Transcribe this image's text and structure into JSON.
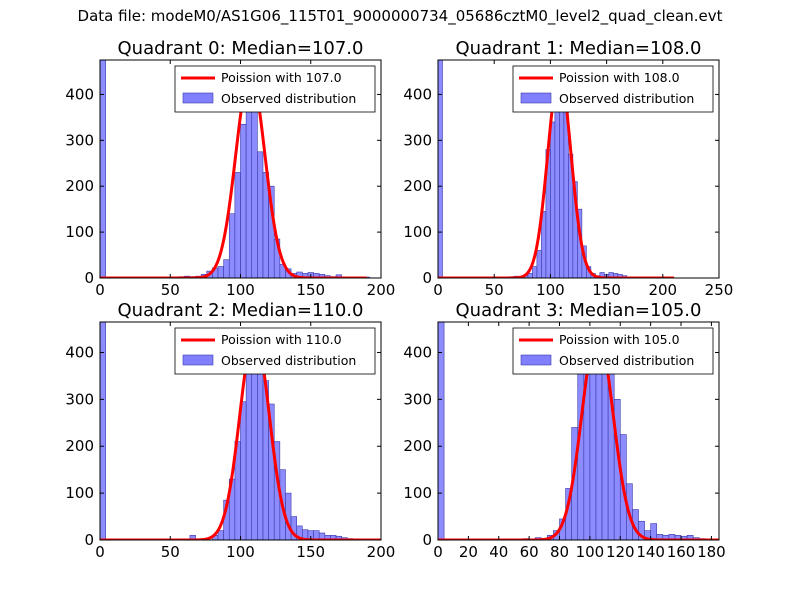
{
  "figure_title": "Data file: modeM0/AS1G06_115T01_9000000734_05686cztM0_level2_quad_clean.evt",
  "colors": {
    "fit": "#ff0000",
    "hist_fill": "#8080ff",
    "hist_edge": "#3a3aa8",
    "axis": "#000000"
  },
  "chart_data": [
    {
      "type": "bar",
      "title": "Quadrant 0: Median=107.0",
      "median": 107.0,
      "xlim": [
        0,
        200
      ],
      "ylim": [
        0,
        475
      ],
      "xticks": [
        0,
        50,
        100,
        150,
        200
      ],
      "yticks": [
        0,
        100,
        200,
        300,
        400
      ],
      "legend": {
        "placement": "top-right",
        "fit_label": "Poission with 107.0",
        "hist_label": "Observed distribution"
      },
      "histogram": {
        "bin_width": 4,
        "bins": [
          {
            "x0": 0,
            "count": 475
          },
          {
            "x0": 56,
            "count": 3
          },
          {
            "x0": 60,
            "count": 4
          },
          {
            "x0": 64,
            "count": 3
          },
          {
            "x0": 68,
            "count": 4
          },
          {
            "x0": 72,
            "count": 8
          },
          {
            "x0": 76,
            "count": 15
          },
          {
            "x0": 80,
            "count": 22
          },
          {
            "x0": 84,
            "count": 25
          },
          {
            "x0": 88,
            "count": 40
          },
          {
            "x0": 92,
            "count": 140
          },
          {
            "x0": 96,
            "count": 230
          },
          {
            "x0": 100,
            "count": 335
          },
          {
            "x0": 104,
            "count": 430
          },
          {
            "x0": 108,
            "count": 400
          },
          {
            "x0": 112,
            "count": 275
          },
          {
            "x0": 116,
            "count": 230
          },
          {
            "x0": 120,
            "count": 200
          },
          {
            "x0": 124,
            "count": 85
          },
          {
            "x0": 128,
            "count": 30
          },
          {
            "x0": 132,
            "count": 20
          },
          {
            "x0": 136,
            "count": 10
          },
          {
            "x0": 140,
            "count": 13
          },
          {
            "x0": 144,
            "count": 10
          },
          {
            "x0": 148,
            "count": 12
          },
          {
            "x0": 152,
            "count": 10
          },
          {
            "x0": 156,
            "count": 8
          },
          {
            "x0": 160,
            "count": 5
          },
          {
            "x0": 164,
            "count": 3
          },
          {
            "x0": 168,
            "count": 7
          },
          {
            "x0": 172,
            "count": 2
          },
          {
            "x0": 188,
            "count": 2
          }
        ]
      },
      "fit": {
        "mean": 107,
        "peak": 445,
        "x_range": [
          0,
          190
        ]
      }
    },
    {
      "type": "bar",
      "title": "Quadrant 1: Median=108.0",
      "median": 108.0,
      "xlim": [
        0,
        250
      ],
      "ylim": [
        0,
        475
      ],
      "xticks": [
        0,
        50,
        100,
        150,
        200,
        250
      ],
      "yticks": [
        0,
        100,
        200,
        300,
        400
      ],
      "legend": {
        "placement": "top-right",
        "fit_label": "Poission with 108.0",
        "hist_label": "Observed distribution"
      },
      "histogram": {
        "bin_width": 4,
        "bins": [
          {
            "x0": 0,
            "count": 475
          },
          {
            "x0": 64,
            "count": 3
          },
          {
            "x0": 68,
            "count": 4
          },
          {
            "x0": 72,
            "count": 3
          },
          {
            "x0": 76,
            "count": 6
          },
          {
            "x0": 80,
            "count": 10
          },
          {
            "x0": 84,
            "count": 25
          },
          {
            "x0": 88,
            "count": 60
          },
          {
            "x0": 92,
            "count": 145
          },
          {
            "x0": 96,
            "count": 280
          },
          {
            "x0": 100,
            "count": 340
          },
          {
            "x0": 104,
            "count": 410
          },
          {
            "x0": 108,
            "count": 430
          },
          {
            "x0": 112,
            "count": 370
          },
          {
            "x0": 116,
            "count": 270
          },
          {
            "x0": 120,
            "count": 210
          },
          {
            "x0": 124,
            "count": 150
          },
          {
            "x0": 128,
            "count": 70
          },
          {
            "x0": 132,
            "count": 25
          },
          {
            "x0": 136,
            "count": 10
          },
          {
            "x0": 140,
            "count": 5
          },
          {
            "x0": 144,
            "count": 12
          },
          {
            "x0": 148,
            "count": 8
          },
          {
            "x0": 152,
            "count": 12
          },
          {
            "x0": 156,
            "count": 10
          },
          {
            "x0": 160,
            "count": 8
          },
          {
            "x0": 164,
            "count": 5
          },
          {
            "x0": 168,
            "count": 2
          },
          {
            "x0": 204,
            "count": 2
          }
        ]
      },
      "fit": {
        "mean": 108,
        "peak": 445,
        "x_range": [
          0,
          210
        ]
      }
    },
    {
      "type": "bar",
      "title": "Quadrant 2: Median=110.0",
      "median": 110.0,
      "xlim": [
        0,
        200
      ],
      "ylim": [
        0,
        465
      ],
      "xticks": [
        0,
        50,
        100,
        150,
        200
      ],
      "yticks": [
        0,
        100,
        200,
        300,
        400
      ],
      "legend": {
        "placement": "top-right",
        "fit_label": "Poission with 110.0",
        "hist_label": "Observed distribution"
      },
      "histogram": {
        "bin_width": 4,
        "bins": [
          {
            "x0": 0,
            "count": 465
          },
          {
            "x0": 64,
            "count": 10
          },
          {
            "x0": 80,
            "count": 10
          },
          {
            "x0": 84,
            "count": 20
          },
          {
            "x0": 88,
            "count": 85
          },
          {
            "x0": 92,
            "count": 130
          },
          {
            "x0": 96,
            "count": 210
          },
          {
            "x0": 100,
            "count": 295
          },
          {
            "x0": 104,
            "count": 425
          },
          {
            "x0": 108,
            "count": 405
          },
          {
            "x0": 112,
            "count": 440
          },
          {
            "x0": 116,
            "count": 340
          },
          {
            "x0": 120,
            "count": 290
          },
          {
            "x0": 124,
            "count": 210
          },
          {
            "x0": 128,
            "count": 150
          },
          {
            "x0": 132,
            "count": 100
          },
          {
            "x0": 136,
            "count": 50
          },
          {
            "x0": 140,
            "count": 30
          },
          {
            "x0": 144,
            "count": 22
          },
          {
            "x0": 148,
            "count": 20
          },
          {
            "x0": 152,
            "count": 20
          },
          {
            "x0": 156,
            "count": 15
          },
          {
            "x0": 160,
            "count": 10
          },
          {
            "x0": 164,
            "count": 10
          },
          {
            "x0": 168,
            "count": 8
          },
          {
            "x0": 172,
            "count": 5
          },
          {
            "x0": 176,
            "count": 3
          }
        ]
      },
      "fit": {
        "mean": 110,
        "peak": 440,
        "x_range": [
          0,
          200
        ]
      }
    },
    {
      "type": "bar",
      "title": "Quadrant 3: Median=105.0",
      "median": 105.0,
      "xlim": [
        0,
        185
      ],
      "ylim": [
        0,
        465
      ],
      "xticks": [
        0,
        20,
        40,
        60,
        80,
        100,
        120,
        140,
        160,
        180
      ],
      "yticks": [
        0,
        100,
        200,
        300,
        400
      ],
      "legend": {
        "placement": "top-right",
        "fit_label": "Poission with 105.0",
        "hist_label": "Observed distribution"
      },
      "histogram": {
        "bin_width": 4,
        "bins": [
          {
            "x0": 0,
            "count": 465
          },
          {
            "x0": 56,
            "count": 3
          },
          {
            "x0": 64,
            "count": 5
          },
          {
            "x0": 68,
            "count": 3
          },
          {
            "x0": 72,
            "count": 10
          },
          {
            "x0": 76,
            "count": 20
          },
          {
            "x0": 80,
            "count": 45
          },
          {
            "x0": 84,
            "count": 110
          },
          {
            "x0": 88,
            "count": 240
          },
          {
            "x0": 92,
            "count": 360
          },
          {
            "x0": 96,
            "count": 380
          },
          {
            "x0": 100,
            "count": 420
          },
          {
            "x0": 104,
            "count": 400
          },
          {
            "x0": 108,
            "count": 425
          },
          {
            "x0": 112,
            "count": 380
          },
          {
            "x0": 116,
            "count": 300
          },
          {
            "x0": 120,
            "count": 225
          },
          {
            "x0": 124,
            "count": 120
          },
          {
            "x0": 128,
            "count": 65
          },
          {
            "x0": 132,
            "count": 40
          },
          {
            "x0": 136,
            "count": 20
          },
          {
            "x0": 140,
            "count": 35
          },
          {
            "x0": 144,
            "count": 12
          },
          {
            "x0": 148,
            "count": 10
          },
          {
            "x0": 152,
            "count": 12
          },
          {
            "x0": 156,
            "count": 10
          },
          {
            "x0": 160,
            "count": 8
          },
          {
            "x0": 164,
            "count": 10
          },
          {
            "x0": 168,
            "count": 5
          },
          {
            "x0": 172,
            "count": 3
          }
        ]
      },
      "fit": {
        "mean": 105,
        "peak": 445,
        "x_range": [
          0,
          185
        ]
      }
    }
  ]
}
